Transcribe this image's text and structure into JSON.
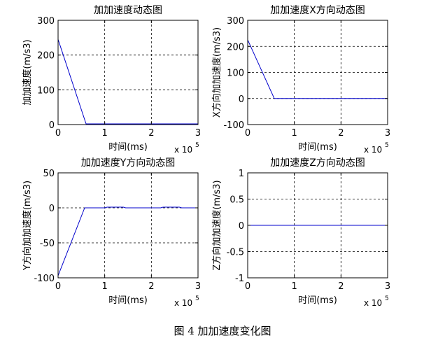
{
  "figure_caption": "图 4  加加速度变化图",
  "chart_data": [
    {
      "type": "line",
      "title": "加加速度动态图",
      "xlabel": "时间(ms)",
      "ylabel": "加加速度(m/s3)",
      "x_multiplier": "x 10",
      "x_exponent": "5",
      "xlim": [
        0,
        3
      ],
      "ylim": [
        0,
        300
      ],
      "xticks": [
        0,
        1,
        2,
        3
      ],
      "yticks": [
        0,
        100,
        200,
        300
      ],
      "grid": true,
      "color": "#0000cc",
      "series": [
        {
          "x": [
            0,
            0.6,
            3
          ],
          "y": [
            245,
            2,
            2
          ]
        }
      ]
    },
    {
      "type": "line",
      "title": "加加速度X方向动态图",
      "xlabel": "时间(ms)",
      "ylabel": "X方向加加速度(m/s3)",
      "x_multiplier": "x 10",
      "x_exponent": "5",
      "xlim": [
        0,
        3
      ],
      "ylim": [
        -100,
        300
      ],
      "xticks": [
        0,
        1,
        2,
        3
      ],
      "yticks": [
        -100,
        0,
        100,
        200,
        300
      ],
      "grid": true,
      "color": "#0000cc",
      "series": [
        {
          "x": [
            0,
            0.57,
            3
          ],
          "y": [
            225,
            0,
            0
          ]
        }
      ]
    },
    {
      "type": "line",
      "title": "加加速度Y方向动态图",
      "xlabel": "时间(ms)",
      "ylabel": "Y方向加加速度(m/s3)",
      "x_multiplier": "x 10",
      "x_exponent": "5",
      "xlim": [
        0,
        3
      ],
      "ylim": [
        -100,
        50
      ],
      "xticks": [
        0,
        1,
        2,
        3
      ],
      "yticks": [
        -100,
        -50,
        0,
        50
      ],
      "grid": true,
      "color": "#0000cc",
      "series": [
        {
          "x": [
            0,
            0.57,
            1.0,
            1.05,
            1.4,
            1.45,
            2.2,
            2.25,
            2.6,
            2.65,
            3
          ],
          "y": [
            -97,
            0,
            0,
            1,
            1,
            0,
            0,
            1,
            1,
            0,
            0
          ]
        }
      ]
    },
    {
      "type": "line",
      "title": "加加速度Z方向动态图",
      "xlabel": "时间(ms)",
      "ylabel": "Z方向加加速度(m/s3)",
      "x_multiplier": "x 10",
      "x_exponent": "5",
      "xlim": [
        0,
        3
      ],
      "ylim": [
        -1,
        1
      ],
      "xticks": [
        0,
        1,
        2,
        3
      ],
      "yticks": [
        -1,
        -0.5,
        0,
        0.5,
        1
      ],
      "grid": true,
      "color": "#0000cc",
      "series": [
        {
          "x": [
            0,
            3
          ],
          "y": [
            0,
            0
          ]
        }
      ]
    }
  ]
}
